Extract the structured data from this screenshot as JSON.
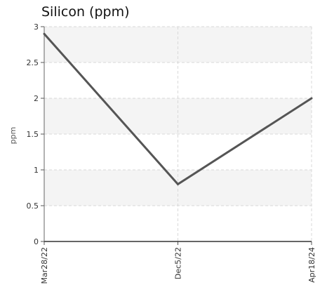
{
  "chart_data": {
    "type": "line",
    "title": "Silicon (ppm)",
    "xlabel": "",
    "ylabel": "ppm",
    "categories": [
      "Mar28/22",
      "Dec5/22",
      "Apr18/24"
    ],
    "series": [
      {
        "values": [
          2.9,
          0.8,
          2.0
        ]
      }
    ],
    "ylim": [
      0,
      3
    ],
    "yticks": [
      "0",
      "0.5",
      "1",
      "1.5",
      "2",
      "2.5",
      "3"
    ],
    "grid": true,
    "line_color": "#555555",
    "band_color": "#f4f4f4",
    "grid_color": "#d9d9d9"
  }
}
